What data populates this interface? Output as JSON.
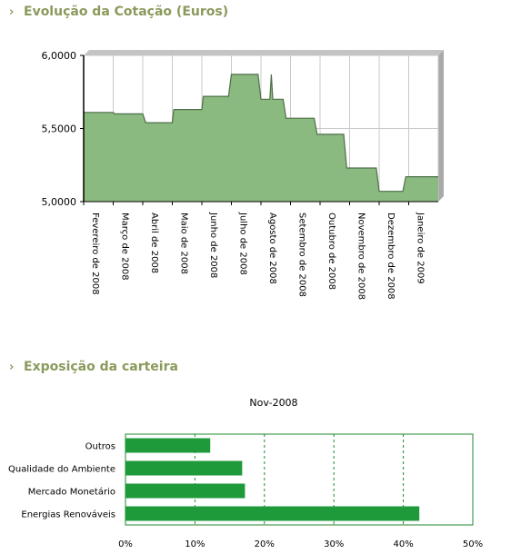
{
  "sections": {
    "price": {
      "title": "Evolução da Cotação (Euros)"
    },
    "exposure": {
      "title": "Exposição da carteira"
    }
  },
  "chart_data": [
    {
      "type": "area",
      "title": "Evolução da Cotação (Euros)",
      "xlabel": "",
      "ylabel": "",
      "ylim": [
        5.0,
        6.0
      ],
      "yticks": [
        "5,0000",
        "5,5000",
        "6,0000"
      ],
      "categories": [
        "Fevereiro de 2008",
        "Março de 2008",
        "Abril de 2008",
        "Maio de 2008",
        "Junho de 2008",
        "Julho de 2008",
        "Agosto de 2008",
        "Setembro de 2008",
        "Outubro de 2008",
        "Novembro de 2008",
        "Dezembro de 2008",
        "Janeiro de 2009"
      ],
      "points": [
        [
          0.0,
          5.61
        ],
        [
          1.0,
          5.61
        ],
        [
          1.05,
          5.6
        ],
        [
          2.0,
          5.6
        ],
        [
          2.1,
          5.54
        ],
        [
          3.0,
          5.54
        ],
        [
          3.05,
          5.63
        ],
        [
          4.0,
          5.63
        ],
        [
          4.05,
          5.72
        ],
        [
          4.9,
          5.72
        ],
        [
          5.0,
          5.87
        ],
        [
          5.9,
          5.87
        ],
        [
          6.0,
          5.7
        ],
        [
          6.3,
          5.7
        ],
        [
          6.35,
          5.87
        ],
        [
          6.4,
          5.7
        ],
        [
          6.75,
          5.7
        ],
        [
          6.85,
          5.57
        ],
        [
          7.8,
          5.57
        ],
        [
          7.9,
          5.46
        ],
        [
          8.8,
          5.46
        ],
        [
          8.9,
          5.23
        ],
        [
          9.9,
          5.23
        ],
        [
          10.0,
          5.07
        ],
        [
          10.8,
          5.07
        ],
        [
          10.9,
          5.17
        ],
        [
          12.0,
          5.17
        ]
      ],
      "grid": true,
      "fill_color": "#8aba80",
      "line_color": "#4f6f49"
    },
    {
      "type": "bar",
      "orientation": "horizontal",
      "title": "Nov-2008",
      "categories": [
        "Outros",
        "Qualidade do Ambiente",
        "Mercado Monetário",
        "Energias Renováveis"
      ],
      "values": [
        12.2,
        16.8,
        17.2,
        42.3
      ],
      "xlim": [
        0,
        50
      ],
      "xticks": [
        "0%",
        "10%",
        "20%",
        "30%",
        "40%",
        "50%"
      ],
      "bar_color": "#1f9a3a",
      "frame_color": "#1f8a2e"
    }
  ]
}
